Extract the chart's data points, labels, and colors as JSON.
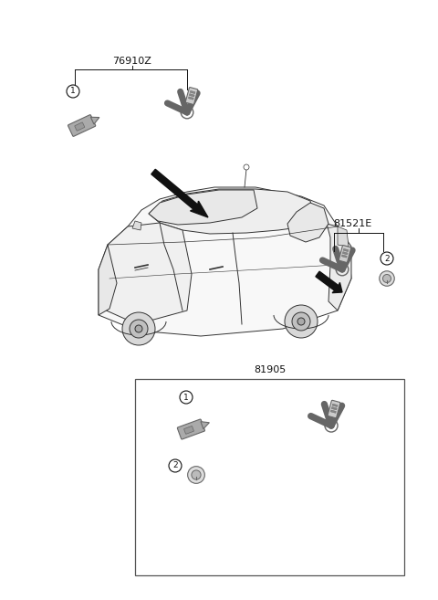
{
  "bg_color": "#ffffff",
  "label_76910Z": "76910Z",
  "label_81521E": "81521E",
  "label_81905": "81905",
  "fig_width": 4.8,
  "fig_height": 6.57,
  "dpi": 100,
  "dgray": "#666666",
  "lgray": "#aaaaaa",
  "black": "#111111",
  "mgray": "#888888"
}
